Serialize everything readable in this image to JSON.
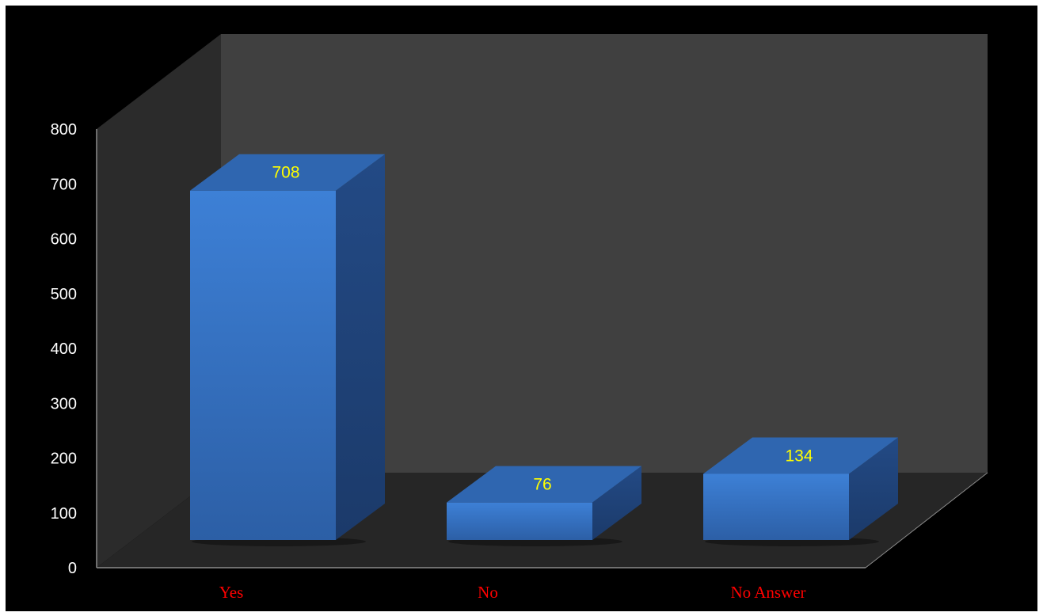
{
  "chart_data": {
    "type": "bar",
    "style": "3d-column",
    "categories": [
      "Yes",
      "No",
      "No Answer"
    ],
    "values": [
      708,
      76,
      134
    ],
    "ylim": [
      0,
      800
    ],
    "yticks": [
      0,
      100,
      200,
      300,
      400,
      500,
      600,
      700,
      800
    ],
    "title": "",
    "xlabel": "",
    "ylabel": "",
    "grid": false,
    "legend": "none",
    "data_labels": [
      "708",
      "76",
      "134"
    ],
    "colors": {
      "background": "#000000",
      "back_wall": "#404040",
      "side_wall": "#2b2b2b",
      "floor": "#262626",
      "bar_front": "#3a7bd0",
      "bar_top": "#2f66b0",
      "bar_side": "#22477f",
      "tick_labels": "#ffffff",
      "category_labels": "#ff0000",
      "data_labels": "#ffff00"
    }
  }
}
